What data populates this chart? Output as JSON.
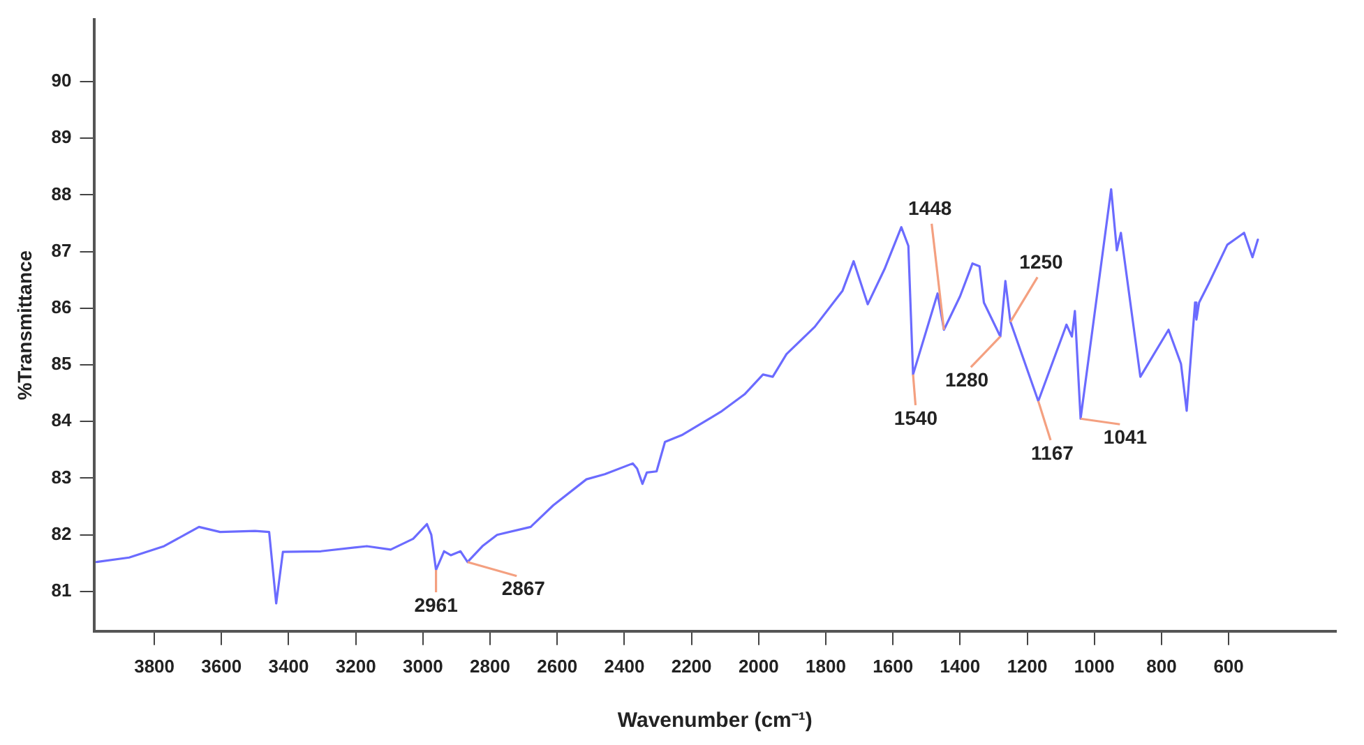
{
  "chart_data": {
    "type": "line",
    "xlabel": "Wavenumber (cm⁻¹)",
    "ylabel": "%Transmittance",
    "xlim": [
      3980,
      280
    ],
    "xticks": [
      3800,
      3600,
      3400,
      3200,
      3000,
      2800,
      2600,
      2400,
      2200,
      2000,
      1800,
      1600,
      1400,
      1200,
      1000,
      800,
      600
    ],
    "ylim": [
      80.3,
      91.1
    ],
    "yticks": [
      81,
      82,
      83,
      84,
      85,
      86,
      87,
      88,
      89,
      90
    ],
    "marker": "none",
    "line_style": "solid",
    "legend": false,
    "series": [
      {
        "color": "#6b6bff",
        "x": [
          3972,
          3875,
          3771,
          3667,
          3604,
          3500,
          3458,
          3437,
          3417,
          3304,
          3167,
          3096,
          3029,
          2988,
          2975,
          2961,
          2937,
          2917,
          2888,
          2867,
          2821,
          2779,
          2679,
          2612,
          2513,
          2458,
          2375,
          2362,
          2346,
          2333,
          2304,
          2279,
          2229,
          2113,
          2042,
          1987,
          1958,
          1917,
          1833,
          1750,
          1717,
          1675,
          1625,
          1575,
          1554,
          1540,
          1467,
          1448,
          1400,
          1363,
          1342,
          1329,
          1280,
          1265,
          1250,
          1167,
          1083,
          1067,
          1058,
          1041,
          950,
          933,
          921,
          863,
          779,
          742,
          725,
          700,
          696,
          688,
          658,
          604,
          554,
          529,
          513
        ],
        "values": [
          81.52,
          81.6,
          81.8,
          82.14,
          82.05,
          82.07,
          82.05,
          80.79,
          81.7,
          81.71,
          81.8,
          81.74,
          81.93,
          82.19,
          82.0,
          81.38,
          81.71,
          81.64,
          81.71,
          81.52,
          81.81,
          82.0,
          82.14,
          82.52,
          82.98,
          83.07,
          83.26,
          83.17,
          82.9,
          83.1,
          83.12,
          83.64,
          83.76,
          84.17,
          84.48,
          84.83,
          84.79,
          85.19,
          85.67,
          86.31,
          86.83,
          86.07,
          86.69,
          87.43,
          87.1,
          84.83,
          86.26,
          85.62,
          86.21,
          86.79,
          86.74,
          86.1,
          85.5,
          86.48,
          85.76,
          84.36,
          85.71,
          85.5,
          85.95,
          84.05,
          88.1,
          87.02,
          87.33,
          84.79,
          85.62,
          85.02,
          84.19,
          86.1,
          85.8,
          86.1,
          86.45,
          87.12,
          87.33,
          86.9,
          87.21
        ]
      }
    ],
    "annotations": [
      {
        "text": "2961",
        "x": 2961,
        "y": 81.38
      },
      {
        "text": "2867",
        "x": 2867,
        "y": 81.52
      },
      {
        "text": "1540",
        "x": 1540,
        "y": 84.83
      },
      {
        "text": "1448",
        "x": 1448,
        "y": 85.62
      },
      {
        "text": "1280",
        "x": 1280,
        "y": 85.5
      },
      {
        "text": "1250",
        "x": 1250,
        "y": 85.76
      },
      {
        "text": "1167",
        "x": 1167,
        "y": 84.36
      },
      {
        "text": "1041",
        "x": 1041,
        "y": 84.05
      }
    ]
  }
}
